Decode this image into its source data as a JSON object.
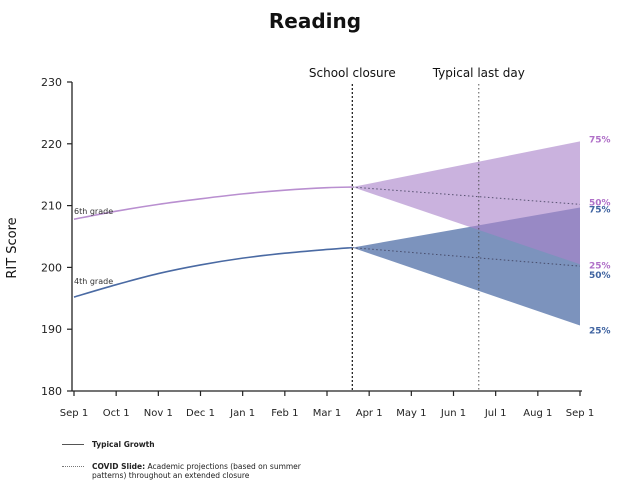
{
  "chart_data": {
    "type": "line",
    "title": "Reading",
    "xlabel": "",
    "ylabel": "RIT Score",
    "ylim": [
      180,
      230
    ],
    "yticks": [
      180,
      190,
      200,
      210,
      220,
      230
    ],
    "x_categories": [
      "Sep 1",
      "Oct 1",
      "Nov 1",
      "Dec 1",
      "Jan 1",
      "Feb 1",
      "Mar 1",
      "Apr 1",
      "May 1",
      "Jun 1",
      "Jul 1",
      "Aug 1",
      "Sep 1"
    ],
    "grid": false,
    "events": [
      {
        "label": "School closure",
        "x": 6.6
      },
      {
        "label": "Typical last day",
        "x": 9.6
      }
    ],
    "series": [
      {
        "name": "6th grade",
        "color": "#b98fd0",
        "typical_growth": {
          "x": [
            0,
            1,
            2,
            3,
            4,
            5,
            6,
            6.6
          ],
          "y": [
            207.8,
            209.1,
            210.2,
            211.1,
            211.9,
            212.5,
            212.9,
            213.0
          ]
        },
        "projections": [
          {
            "label": "75%",
            "x": [
              6.6,
              12
            ],
            "y": [
              213.0,
              220.4
            ]
          },
          {
            "label": "50%",
            "x": [
              6.6,
              12
            ],
            "y": [
              213.0,
              210.2
            ]
          },
          {
            "label": "25%",
            "x": [
              6.6,
              12
            ],
            "y": [
              213.0,
              200.5
            ]
          }
        ]
      },
      {
        "name": "4th grade",
        "color": "#4a6aa3",
        "typical_growth": {
          "x": [
            0,
            1,
            2,
            3,
            4,
            5,
            6,
            6.6
          ],
          "y": [
            195.2,
            197.2,
            199.0,
            200.4,
            201.5,
            202.3,
            202.9,
            203.2
          ]
        },
        "projections": [
          {
            "label": "75%",
            "x": [
              6.6,
              12
            ],
            "y": [
              203.2,
              209.7
            ]
          },
          {
            "label": "50%",
            "x": [
              6.6,
              12
            ],
            "y": [
              203.2,
              200.2
            ]
          },
          {
            "label": "25%",
            "x": [
              6.6,
              12
            ],
            "y": [
              203.2,
              190.6
            ]
          }
        ]
      }
    ],
    "label_colors": {
      "sixth": "#b070c8",
      "fourth": "#3f63a0"
    }
  },
  "legend": {
    "typical_growth": "Typical Growth",
    "covid_slide_bold": "COVID Slide:",
    "covid_slide_text_line1": "Academic projections (based on summer",
    "covid_slide_text_line2": "patterns) throughout an extended closure"
  }
}
